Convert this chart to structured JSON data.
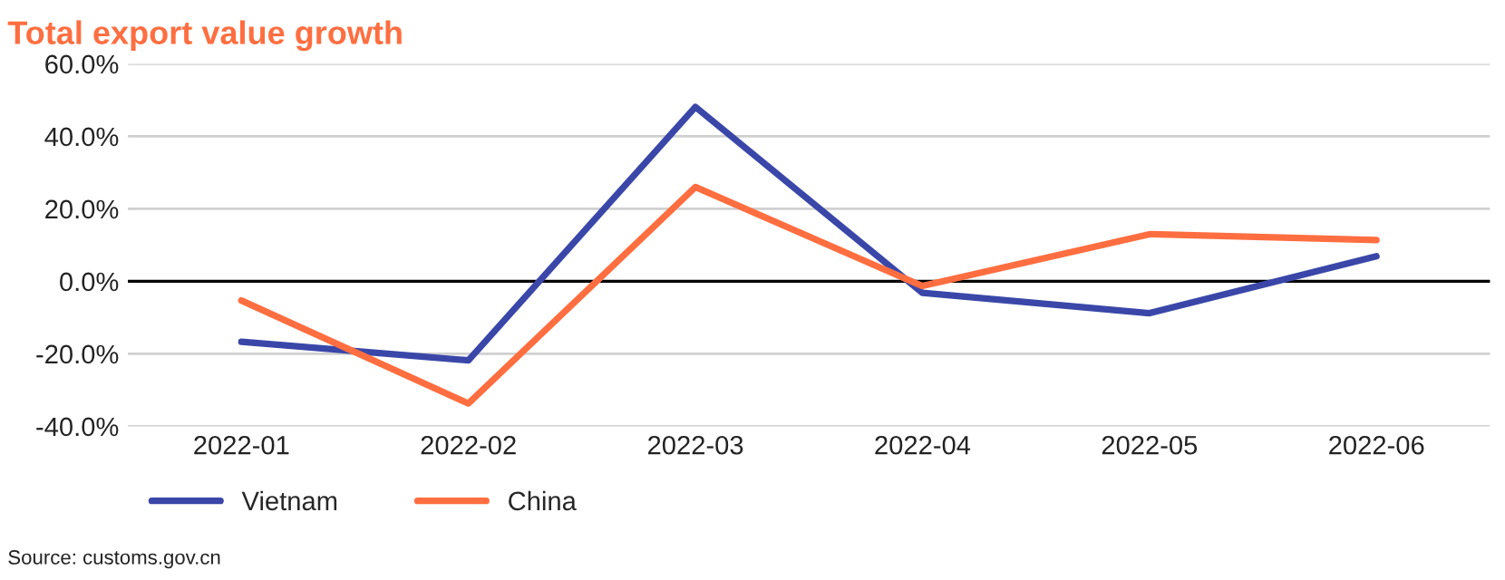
{
  "chart_data": {
    "type": "line",
    "title": "Total export value growth",
    "categories": [
      "2022-01",
      "2022-02",
      "2022-03",
      "2022-04",
      "2022-05",
      "2022-06"
    ],
    "series": [
      {
        "name": "Vietnam",
        "color": "#3a47a8",
        "values": [
          -16.7,
          -21.8,
          48.1,
          -3.2,
          -8.8,
          6.9
        ]
      },
      {
        "name": "China",
        "color": "#ff6e40",
        "values": [
          -5.3,
          -33.7,
          26.0,
          -1.3,
          13.0,
          11.4
        ]
      }
    ],
    "ylim": [
      -40,
      60
    ],
    "yticks": [
      {
        "value": -40,
        "label": "-40.0%"
      },
      {
        "value": -20,
        "label": "-20.0%"
      },
      {
        "value": 0,
        "label": "0.0%"
      },
      {
        "value": 20,
        "label": "20.0%"
      },
      {
        "value": 40,
        "label": "40.0%"
      },
      {
        "value": 60,
        "label": "60.0%"
      }
    ],
    "ref_lines": [
      {
        "axis": "y",
        "value": 0,
        "color": "#000000"
      }
    ],
    "grid": "y",
    "legend": "bottom left",
    "line_style": "solid",
    "marker": "none",
    "annotations": [
      "Source: customs.gov.cn"
    ]
  }
}
